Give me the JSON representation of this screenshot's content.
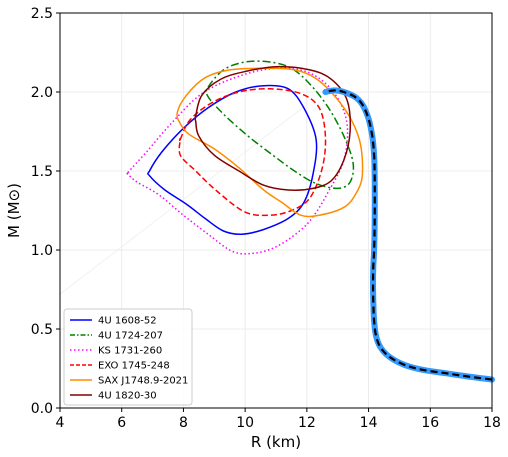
{
  "chart_data": {
    "type": "line",
    "xlabel": "R (km)",
    "ylabel": "M (M⊙)",
    "xlim": [
      4,
      18
    ],
    "ylim": [
      0,
      2.5
    ],
    "xticks": [
      "4",
      "6",
      "8",
      "10",
      "12",
      "14",
      "16",
      "18"
    ],
    "yticks": [
      "0.0",
      "0.5",
      "1.0",
      "1.5",
      "2.0",
      "2.5"
    ],
    "grid": true,
    "legend_position": "lower-left",
    "legend": [
      {
        "name": "4U 1608-52",
        "color": "#0000ff",
        "style": "solid"
      },
      {
        "name": "4U 1724-207",
        "color": "#008000",
        "style": "dashdot"
      },
      {
        "name": "KS 1731-260",
        "color": "#ff00ff",
        "style": "dotted"
      },
      {
        "name": "EXO 1745-248",
        "color": "#ff0000",
        "style": "dashed"
      },
      {
        "name": "SAX J1748.9-2021",
        "color": "#ff8c00",
        "style": "solid"
      },
      {
        "name": "4U 1820-30",
        "color": "#800000",
        "style": "solid"
      }
    ],
    "contours": [
      {
        "color": "#0000ff",
        "style": "solid",
        "points": [
          [
            6.9,
            1.5
          ],
          [
            7.3,
            1.62
          ],
          [
            8.0,
            1.77
          ],
          [
            8.8,
            1.9
          ],
          [
            9.7,
            2.0
          ],
          [
            10.6,
            2.04
          ],
          [
            11.4,
            2.02
          ],
          [
            11.9,
            1.9
          ],
          [
            12.3,
            1.7
          ],
          [
            12.2,
            1.48
          ],
          [
            11.9,
            1.3
          ],
          [
            11.4,
            1.2
          ],
          [
            10.6,
            1.13
          ],
          [
            9.9,
            1.1
          ],
          [
            9.3,
            1.12
          ],
          [
            8.7,
            1.2
          ],
          [
            8.1,
            1.29
          ],
          [
            7.4,
            1.38
          ],
          [
            6.9,
            1.47
          ]
        ]
      },
      {
        "color": "#008000",
        "style": "dashdot",
        "points": [
          [
            8.8,
            2.03
          ],
          [
            9.3,
            2.14
          ],
          [
            10.0,
            2.19
          ],
          [
            10.8,
            2.19
          ],
          [
            11.5,
            2.15
          ],
          [
            12.1,
            2.05
          ],
          [
            12.7,
            1.9
          ],
          [
            13.2,
            1.72
          ],
          [
            13.5,
            1.55
          ],
          [
            13.4,
            1.43
          ],
          [
            13.0,
            1.39
          ],
          [
            12.3,
            1.42
          ],
          [
            11.6,
            1.5
          ],
          [
            10.9,
            1.6
          ],
          [
            10.1,
            1.72
          ],
          [
            9.3,
            1.86
          ],
          [
            8.8,
            1.97
          ]
        ]
      },
      {
        "color": "#ff00ff",
        "style": "dotted",
        "points": [
          [
            6.2,
            1.49
          ],
          [
            6.8,
            1.62
          ],
          [
            7.6,
            1.8
          ],
          [
            8.6,
            1.99
          ],
          [
            9.8,
            2.1
          ],
          [
            11.0,
            2.15
          ],
          [
            12.1,
            2.12
          ],
          [
            12.9,
            1.99
          ],
          [
            13.3,
            1.8
          ],
          [
            13.2,
            1.57
          ],
          [
            12.7,
            1.37
          ],
          [
            12.2,
            1.21
          ],
          [
            11.7,
            1.11
          ],
          [
            11.0,
            1.02
          ],
          [
            10.3,
            0.98
          ],
          [
            9.6,
            0.99
          ],
          [
            8.8,
            1.1
          ],
          [
            8.0,
            1.22
          ],
          [
            7.2,
            1.35
          ],
          [
            6.5,
            1.43
          ],
          [
            6.2,
            1.48
          ]
        ]
      },
      {
        "color": "#ff0000",
        "style": "dashed",
        "points": [
          [
            7.9,
            1.7
          ],
          [
            8.2,
            1.82
          ],
          [
            8.9,
            1.93
          ],
          [
            9.8,
            2.0
          ],
          [
            10.8,
            2.02
          ],
          [
            11.8,
            1.99
          ],
          [
            12.4,
            1.9
          ],
          [
            12.6,
            1.72
          ],
          [
            12.5,
            1.52
          ],
          [
            12.1,
            1.33
          ],
          [
            11.5,
            1.25
          ],
          [
            10.8,
            1.22
          ],
          [
            10.0,
            1.24
          ],
          [
            9.1,
            1.37
          ],
          [
            8.4,
            1.5
          ],
          [
            7.9,
            1.6
          ],
          [
            7.9,
            1.7
          ]
        ]
      },
      {
        "color": "#ff8c00",
        "style": "solid",
        "points": [
          [
            7.8,
            1.87
          ],
          [
            8.1,
            1.98
          ],
          [
            8.7,
            2.09
          ],
          [
            9.5,
            2.14
          ],
          [
            10.5,
            2.15
          ],
          [
            11.6,
            2.14
          ],
          [
            12.4,
            2.07
          ],
          [
            13.2,
            1.9
          ],
          [
            13.7,
            1.7
          ],
          [
            13.8,
            1.48
          ],
          [
            13.6,
            1.36
          ],
          [
            13.2,
            1.27
          ],
          [
            12.4,
            1.22
          ],
          [
            11.8,
            1.22
          ],
          [
            11.2,
            1.3
          ],
          [
            10.6,
            1.38
          ],
          [
            9.8,
            1.52
          ],
          [
            9.0,
            1.64
          ],
          [
            8.2,
            1.73
          ],
          [
            7.9,
            1.8
          ]
        ]
      },
      {
        "color": "#800000",
        "style": "solid",
        "points": [
          [
            8.4,
            1.85
          ],
          [
            8.6,
            1.98
          ],
          [
            9.2,
            2.08
          ],
          [
            10.0,
            2.13
          ],
          [
            11.0,
            2.16
          ],
          [
            12.1,
            2.14
          ],
          [
            12.8,
            2.08
          ],
          [
            13.3,
            1.95
          ],
          [
            13.4,
            1.75
          ],
          [
            13.2,
            1.57
          ],
          [
            12.8,
            1.44
          ],
          [
            12.2,
            1.39
          ],
          [
            11.4,
            1.38
          ],
          [
            10.6,
            1.41
          ],
          [
            9.8,
            1.5
          ],
          [
            9.0,
            1.6
          ],
          [
            8.5,
            1.72
          ],
          [
            8.4,
            1.81
          ]
        ]
      }
    ],
    "mr_curve": {
      "color": "#3399ff",
      "overlay_color": "#000000",
      "points": [
        [
          18.0,
          0.18
        ],
        [
          17.2,
          0.2
        ],
        [
          16.5,
          0.22
        ],
        [
          15.8,
          0.24
        ],
        [
          15.2,
          0.27
        ],
        [
          14.7,
          0.32
        ],
        [
          14.4,
          0.38
        ],
        [
          14.25,
          0.45
        ],
        [
          14.18,
          0.55
        ],
        [
          14.15,
          0.7
        ],
        [
          14.15,
          0.88
        ],
        [
          14.18,
          1.0
        ],
        [
          14.2,
          1.2
        ],
        [
          14.2,
          1.45
        ],
        [
          14.18,
          1.6
        ],
        [
          14.12,
          1.72
        ],
        [
          14.0,
          1.83
        ],
        [
          13.8,
          1.92
        ],
        [
          13.55,
          1.97
        ],
        [
          13.2,
          2.0
        ],
        [
          12.9,
          2.01
        ],
        [
          12.6,
          2.0
        ]
      ]
    },
    "faint_line": {
      "color": "#eeeeee",
      "points": [
        [
          4.0,
          0.72
        ],
        [
          12.0,
          1.92
        ]
      ]
    }
  }
}
